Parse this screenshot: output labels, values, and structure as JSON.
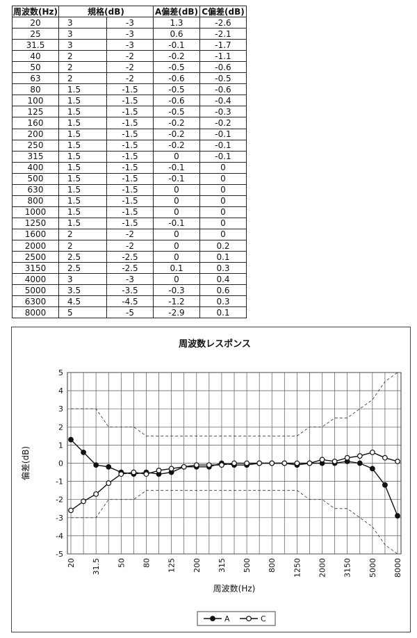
{
  "table": {
    "headers": [
      "周波数(Hz)",
      "規格(dB)",
      "",
      "A偏差(dB)",
      "C偏差(dB)"
    ],
    "rows": [
      [
        "20",
        "3",
        "-3",
        "1.3",
        "-2.6"
      ],
      [
        "25",
        "3",
        "-3",
        "0.6",
        "-2.1"
      ],
      [
        "31.5",
        "3",
        "-3",
        "-0.1",
        "-1.7"
      ],
      [
        "40",
        "2",
        "-2",
        "-0.2",
        "-1.1"
      ],
      [
        "50",
        "2",
        "-2",
        "-0.5",
        "-0.6"
      ],
      [
        "63",
        "2",
        "-2",
        "-0.6",
        "-0.5"
      ],
      [
        "80",
        "1.5",
        "-1.5",
        "-0.5",
        "-0.6"
      ],
      [
        "100",
        "1.5",
        "-1.5",
        "-0.6",
        "-0.4"
      ],
      [
        "125",
        "1.5",
        "-1.5",
        "-0.5",
        "-0.3"
      ],
      [
        "160",
        "1.5",
        "-1.5",
        "-0.2",
        "-0.2"
      ],
      [
        "200",
        "1.5",
        "-1.5",
        "-0.2",
        "-0.1"
      ],
      [
        "250",
        "1.5",
        "-1.5",
        "-0.2",
        "-0.1"
      ],
      [
        "315",
        "1.5",
        "-1.5",
        "0",
        "-0.1"
      ],
      [
        "400",
        "1.5",
        "-1.5",
        "-0.1",
        "0"
      ],
      [
        "500",
        "1.5",
        "-1.5",
        "-0.1",
        "0"
      ],
      [
        "630",
        "1.5",
        "-1.5",
        "0",
        "0"
      ],
      [
        "800",
        "1.5",
        "-1.5",
        "0",
        "0"
      ],
      [
        "1000",
        "1.5",
        "-1.5",
        "0",
        "0"
      ],
      [
        "1250",
        "1.5",
        "-1.5",
        "-0.1",
        "0"
      ],
      [
        "1600",
        "2",
        "-2",
        "0",
        "0"
      ],
      [
        "2000",
        "2",
        "-2",
        "0",
        "0.2"
      ],
      [
        "2500",
        "2.5",
        "-2.5",
        "0",
        "0.1"
      ],
      [
        "3150",
        "2.5",
        "-2.5",
        "0.1",
        "0.3"
      ],
      [
        "4000",
        "3",
        "-3",
        "0",
        "0.4"
      ],
      [
        "5000",
        "3.5",
        "-3.5",
        "-0.3",
        "0.6"
      ],
      [
        "6300",
        "4.5",
        "-4.5",
        "-1.2",
        "0.3"
      ],
      [
        "8000",
        "5",
        "-5",
        "-2.9",
        "0.1"
      ]
    ]
  },
  "chart_data": {
    "type": "line",
    "title": "周波数レスポンス",
    "xlabel": "周波数(Hz)",
    "ylabel": "偏差(dB)",
    "ylim": [
      -5,
      5
    ],
    "yticks": [
      "5",
      "4",
      "3",
      "2",
      "1",
      "0",
      "-1",
      "-2",
      "-3",
      "-4",
      "-5"
    ],
    "x": [
      "20",
      "25",
      "31.5",
      "40",
      "50",
      "63",
      "80",
      "100",
      "125",
      "160",
      "200",
      "250",
      "315",
      "400",
      "500",
      "630",
      "800",
      "1000",
      "1250",
      "1600",
      "2000",
      "2500",
      "3150",
      "4000",
      "5000",
      "6300",
      "8000"
    ],
    "x_tick_labels": [
      "20",
      "31.5",
      "50",
      "80",
      "125",
      "200",
      "315",
      "500",
      "800",
      "1250",
      "2000",
      "3150",
      "5000",
      "8000"
    ],
    "grid": true,
    "legend": "bottom",
    "series": [
      {
        "name": "A",
        "marker": "filled-circle",
        "color": "#111111",
        "values": [
          1.3,
          0.6,
          -0.1,
          -0.2,
          -0.5,
          -0.6,
          -0.5,
          -0.6,
          -0.5,
          -0.2,
          -0.2,
          -0.2,
          0,
          -0.1,
          -0.1,
          0,
          0,
          0,
          -0.1,
          0,
          0,
          0,
          0.1,
          0,
          -0.3,
          -1.2,
          -2.9
        ]
      },
      {
        "name": "C",
        "marker": "open-circle",
        "color": "#111111",
        "values": [
          -2.6,
          -2.1,
          -1.7,
          -1.1,
          -0.6,
          -0.5,
          -0.6,
          -0.4,
          -0.3,
          -0.2,
          -0.1,
          -0.1,
          -0.1,
          0,
          0,
          0,
          0,
          0,
          0,
          0,
          0.2,
          0.1,
          0.3,
          0.4,
          0.6,
          0.3,
          0.1
        ]
      }
    ],
    "tolerance_upper": [
      3,
      3,
      3,
      2,
      2,
      2,
      1.5,
      1.5,
      1.5,
      1.5,
      1.5,
      1.5,
      1.5,
      1.5,
      1.5,
      1.5,
      1.5,
      1.5,
      1.5,
      2,
      2,
      2.5,
      2.5,
      3,
      3.5,
      4.5,
      5
    ],
    "tolerance_lower": [
      -3,
      -3,
      -3,
      -2,
      -2,
      -2,
      -1.5,
      -1.5,
      -1.5,
      -1.5,
      -1.5,
      -1.5,
      -1.5,
      -1.5,
      -1.5,
      -1.5,
      -1.5,
      -1.5,
      -1.5,
      -2,
      -2,
      -2.5,
      -2.5,
      -3,
      -3.5,
      -4.5,
      -5
    ],
    "tolerance_style": "dashed"
  }
}
